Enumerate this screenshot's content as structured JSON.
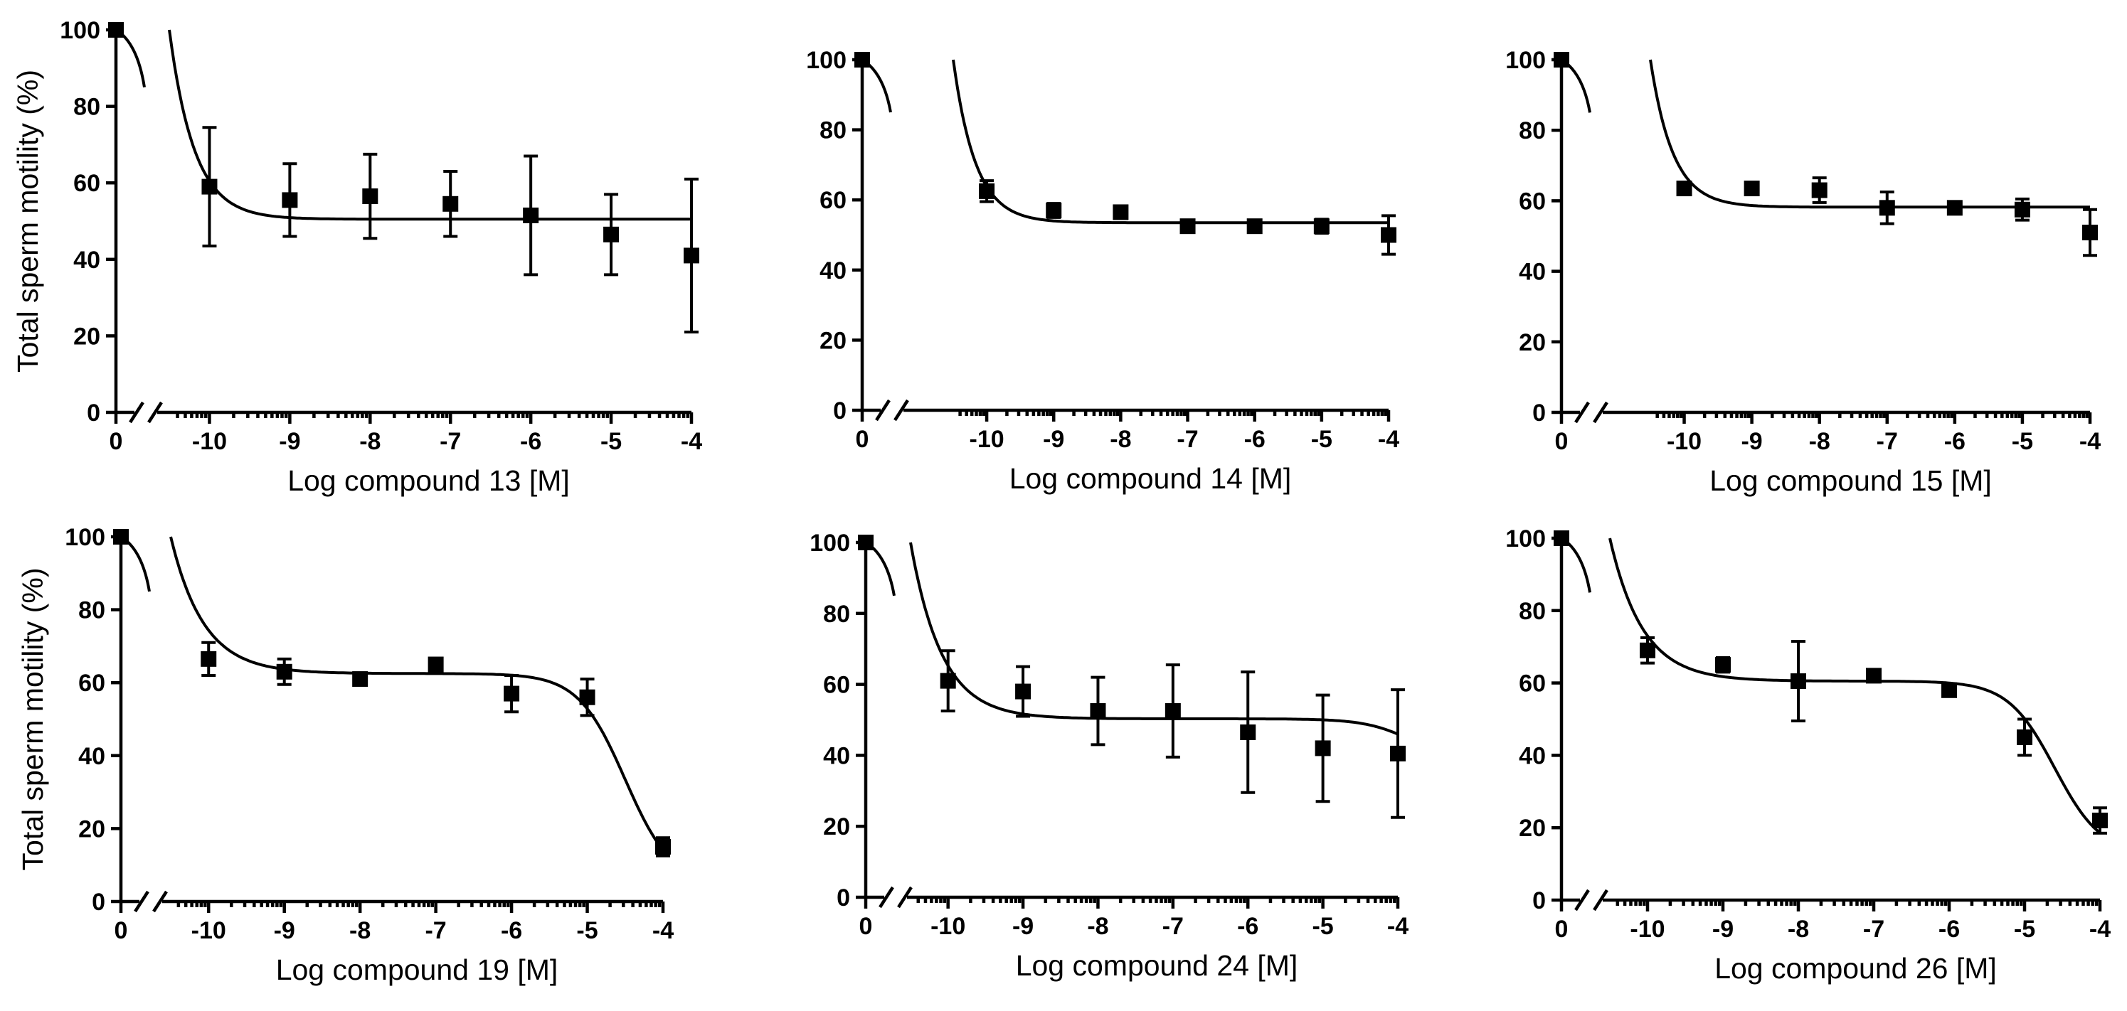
{
  "chart_data": [
    {
      "type": "scatter",
      "title": "",
      "xlabel": "Log compound 13 [M]",
      "ylabel": "Total sperm motility (%)",
      "ylim": [
        0,
        100
      ],
      "yticks": [
        "0",
        "20",
        "40",
        "60",
        "80",
        "100"
      ],
      "xticks": [
        "0",
        "-10",
        "-9",
        "-8",
        "-7",
        "-6",
        "-5",
        "-4"
      ],
      "control": {
        "x": "0",
        "y": 100
      },
      "points": [
        {
          "x": -10,
          "y": 59,
          "err": 15.5
        },
        {
          "x": -9,
          "y": 55.5,
          "err": 9.5
        },
        {
          "x": -8,
          "y": 56.5,
          "err": 11
        },
        {
          "x": -7,
          "y": 54.5,
          "err": 8.5
        },
        {
          "x": -6,
          "y": 51.5,
          "err": 15.5
        },
        {
          "x": -5,
          "y": 46.5,
          "err": 10.5
        },
        {
          "x": -4,
          "y": 41,
          "err": 20
        }
      ],
      "fit": {
        "top": 100,
        "plateau": 50.5,
        "k1": 3.2,
        "drop": 0,
        "ec50": -3,
        "hill": 1.4
      }
    },
    {
      "type": "scatter",
      "title": "",
      "xlabel": "Log compound 14 [M]",
      "ylabel": "",
      "ylim": [
        0,
        100
      ],
      "yticks": [
        "0",
        "20",
        "40",
        "60",
        "80",
        "100"
      ],
      "xticks": [
        "0",
        "-10",
        "-9",
        "-8",
        "-7",
        "-6",
        "-5",
        "-4"
      ],
      "control": {
        "x": "0",
        "y": 100
      },
      "points": [
        {
          "x": -10,
          "y": 62.5,
          "err": 3
        },
        {
          "x": -9,
          "y": 57,
          "err": 2
        },
        {
          "x": -8,
          "y": 56.5,
          "err": 1
        },
        {
          "x": -7,
          "y": 52.5,
          "err": 1
        },
        {
          "x": -6,
          "y": 52.5,
          "err": 1
        },
        {
          "x": -5,
          "y": 52.5,
          "err": 2
        },
        {
          "x": -4,
          "y": 50,
          "err": 5.5
        }
      ],
      "fit": {
        "top": 100,
        "plateau": 53.5,
        "k1": 3.0,
        "drop": 0,
        "ec50": -3,
        "hill": 1.4
      }
    },
    {
      "type": "scatter",
      "title": "",
      "xlabel": "Log compound 15 [M]",
      "ylabel": "",
      "ylim": [
        0,
        100
      ],
      "yticks": [
        "0",
        "20",
        "40",
        "60",
        "80",
        "100"
      ],
      "xticks": [
        "0",
        "-10",
        "-9",
        "-8",
        "-7",
        "-6",
        "-5",
        "-4"
      ],
      "control": {
        "x": "0",
        "y": 100
      },
      "points": [
        {
          "x": -10,
          "y": 63.5,
          "err": 1.5
        },
        {
          "x": -9,
          "y": 63.5,
          "err": 1
        },
        {
          "x": -8,
          "y": 63,
          "err": 3.5
        },
        {
          "x": -7,
          "y": 58,
          "err": 4.5
        },
        {
          "x": -6,
          "y": 58,
          "err": 1.5
        },
        {
          "x": -5,
          "y": 57.5,
          "err": 3
        },
        {
          "x": -4,
          "y": 51,
          "err": 6.5
        }
      ],
      "fit": {
        "top": 100,
        "plateau": 58.2,
        "k1": 3.0,
        "drop": 0,
        "ec50": -3,
        "hill": 1.4
      }
    },
    {
      "type": "scatter",
      "title": "",
      "xlabel": "Log compound 19 [M]",
      "ylabel": "Total sperm motility (%)",
      "ylim": [
        0,
        100
      ],
      "yticks": [
        "0",
        "20",
        "40",
        "60",
        "80",
        "100"
      ],
      "xticks": [
        "0",
        "-10",
        "-9",
        "-8",
        "-7",
        "-6",
        "-5",
        "-4"
      ],
      "control": {
        "x": "0",
        "y": 100
      },
      "points": [
        {
          "x": -10,
          "y": 66.5,
          "err": 4.5
        },
        {
          "x": -9,
          "y": 63,
          "err": 3.5
        },
        {
          "x": -8,
          "y": 61,
          "err": 1.5
        },
        {
          "x": -7,
          "y": 65,
          "err": 1
        },
        {
          "x": -6,
          "y": 57,
          "err": 5
        },
        {
          "x": -5,
          "y": 56,
          "err": 5
        },
        {
          "x": -4,
          "y": 15,
          "err": 2.5
        }
      ],
      "fit": {
        "top": 100,
        "plateau": 62.5,
        "k1": 2.3,
        "drop": 58,
        "ec50": -4.5,
        "hill": 1.4
      }
    },
    {
      "type": "scatter",
      "title": "",
      "xlabel": "Log compound 24 [M]",
      "ylabel": "",
      "ylim": [
        0,
        100
      ],
      "yticks": [
        "0",
        "20",
        "40",
        "60",
        "80",
        "100"
      ],
      "xticks": [
        "0",
        "-10",
        "-9",
        "-8",
        "-7",
        "-6",
        "-5",
        "-4"
      ],
      "control": {
        "x": "0",
        "y": 100
      },
      "points": [
        {
          "x": -10,
          "y": 61,
          "err": 8.5
        },
        {
          "x": -9,
          "y": 58,
          "err": 7
        },
        {
          "x": -8,
          "y": 52.5,
          "err": 9.5
        },
        {
          "x": -7,
          "y": 52.5,
          "err": 13
        },
        {
          "x": -6,
          "y": 46.5,
          "err": 17
        },
        {
          "x": -5,
          "y": 42,
          "err": 15
        },
        {
          "x": -4,
          "y": 40.5,
          "err": 18
        }
      ],
      "fit": {
        "top": 100,
        "plateau": 50.3,
        "k1": 2.4,
        "drop": 15,
        "ec50": -3.7,
        "hill": 1.3
      }
    },
    {
      "type": "scatter",
      "title": "",
      "xlabel": "Log compound 26 [M]",
      "ylabel": "",
      "ylim": [
        0,
        100
      ],
      "yticks": [
        "0",
        "20",
        "40",
        "60",
        "80",
        "100"
      ],
      "xticks": [
        "0",
        "-10",
        "-9",
        "-8",
        "-7",
        "-6",
        "-5",
        "-4"
      ],
      "control": {
        "x": "0",
        "y": 100
      },
      "points": [
        {
          "x": -10,
          "y": 69,
          "err": 3.5
        },
        {
          "x": -9,
          "y": 65,
          "err": 2
        },
        {
          "x": -8,
          "y": 60.5,
          "err": 11
        },
        {
          "x": -7,
          "y": 62,
          "err": 1.5
        },
        {
          "x": -6,
          "y": 58,
          "err": 1
        },
        {
          "x": -5,
          "y": 45,
          "err": 5
        },
        {
          "x": -4,
          "y": 22,
          "err": 3.5
        }
      ],
      "fit": {
        "top": 100,
        "plateau": 60.5,
        "k1": 2.3,
        "drop": 48,
        "ec50": -4.6,
        "hill": 1.4
      }
    }
  ]
}
